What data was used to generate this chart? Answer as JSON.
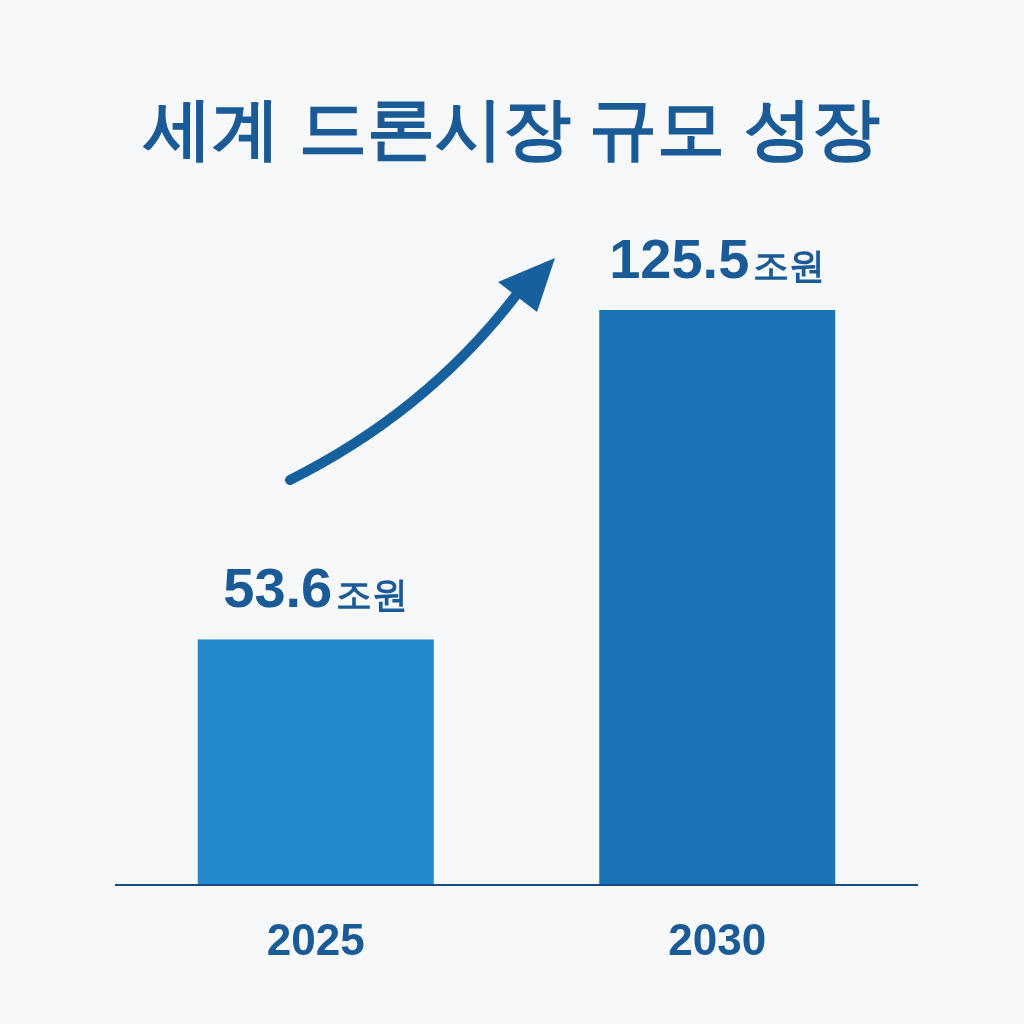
{
  "chart_data": {
    "type": "bar",
    "title": "세계 드론시장 규모 성장",
    "categories": [
      "2025",
      "2030"
    ],
    "values": [
      53.6,
      125.5
    ],
    "colors": [
      "#2389cf",
      "#1b74b5"
    ],
    "value_labels": [
      "53.6조원",
      "125.5조원"
    ]
  }
}
